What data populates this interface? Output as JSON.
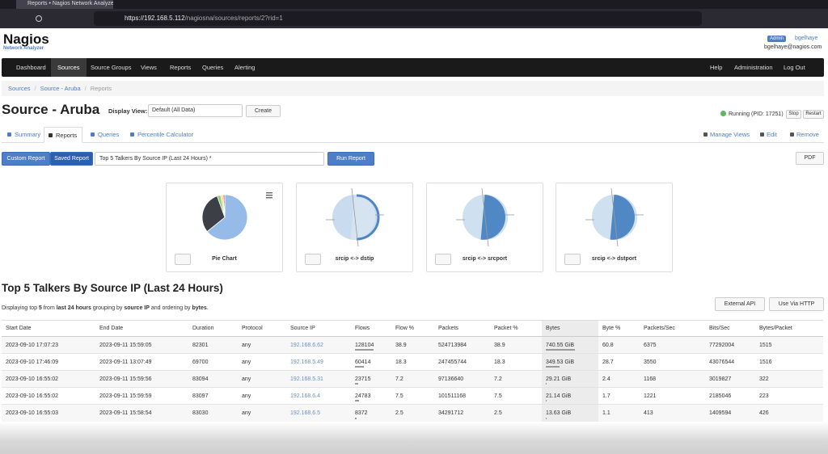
{
  "browser": {
    "tab_title": "Reports • Nagios Network Analyzer",
    "url_host": "https://192.168.5.112",
    "url_path": "/nagiosna/sources/reports/2?rid=1"
  },
  "header": {
    "logo": "Nagios",
    "logo_sub": "Network Analyzer",
    "badge": "Admin",
    "username": "bgelhaye",
    "email": "bgelhaye@nagios.com"
  },
  "nav": {
    "left": [
      "Dashboard",
      "Sources",
      "Source Groups",
      "Views",
      "Reports",
      "Queries",
      "Alerting"
    ],
    "right": [
      "Help",
      "Administration",
      "Log Out"
    ]
  },
  "breadcrumb": [
    "Sources",
    "Source - Aruba",
    "Reports"
  ],
  "page": {
    "title": "Source - Aruba",
    "display_view_label": "Display View:",
    "display_view_value": "Default (All Data)",
    "create": "Create",
    "status": "Running (PID: 17251)",
    "stop": "Stop",
    "restart": "Restart"
  },
  "tabs": {
    "left": [
      "Summary",
      "Reports",
      "Queries",
      "Percentile Calculator"
    ],
    "right": [
      "Manage Views",
      "Edit",
      "Remove"
    ]
  },
  "report_bar": {
    "custom": "Custom Report",
    "saved": "Saved Report",
    "select": "Top 5 Talkers By Source IP (Last 24 Hours) *",
    "run": "Run Report",
    "pdf": "PDF"
  },
  "cards": [
    "Pie Chart",
    "srcip <-> dstip",
    "srcip <-> srcport",
    "srcip <-> dstport"
  ],
  "pie_colors": [
    "#96bbe8",
    "#3c4046",
    "#93cc7a",
    "#f3e08c",
    "#e3577c"
  ],
  "section": {
    "title": "Top 5 Talkers By Source IP (Last 24 Hours)",
    "description": [
      "Displaying top ",
      "5",
      " from ",
      "last 24 hours",
      " grouping by ",
      "source IP",
      " and ordering by ",
      "bytes",
      "."
    ],
    "external_api": "External API",
    "use_http": "Use Via HTTP"
  },
  "table": {
    "headers": [
      "Start Date",
      "End Date",
      "Duration",
      "Protocol",
      "Source IP",
      "Flows",
      "Flow %",
      "Packets",
      "Packet %",
      "Bytes",
      "Byte %",
      "Packets/Sec",
      "Bits/Sec",
      "Bytes/Packet"
    ],
    "rows": [
      [
        "2023-09-10 17:07:23",
        "2023-09-11 15:59:05",
        82301,
        "any",
        "192.168.6.62",
        128104,
        38.9,
        524713984,
        38.9,
        "740.55 GiB",
        60.8,
        6375,
        77292004,
        1515
      ],
      [
        "2023-09-10 17:46:09",
        "2023-09-11 13:07:49",
        69700,
        "any",
        "192.168.5.49",
        60414,
        18.3,
        247455744,
        18.3,
        "349.53 GiB",
        28.7,
        3550,
        43076544,
        1516
      ],
      [
        "2023-09-10 16:55:02",
        "2023-09-11 15:59:56",
        83094,
        "any",
        "192.168.5.31",
        23715,
        7.2,
        97136640,
        7.2,
        "29.21 GiB",
        2.4,
        1168,
        3019827,
        322
      ],
      [
        "2023-09-10 16:55:02",
        "2023-09-11 15:59:59",
        83097,
        "any",
        "192.168.6.4",
        24783,
        7.5,
        101511168,
        7.5,
        "21.14 GiB",
        1.7,
        1221,
        2185046,
        223
      ],
      [
        "2023-09-10 16:55:03",
        "2023-09-11 15:58:54",
        83030,
        "any",
        "192.168.6.5",
        8372,
        2.5,
        34291712,
        2.5,
        "13.63 GiB",
        1.1,
        413,
        1409594,
        426
      ]
    ]
  }
}
